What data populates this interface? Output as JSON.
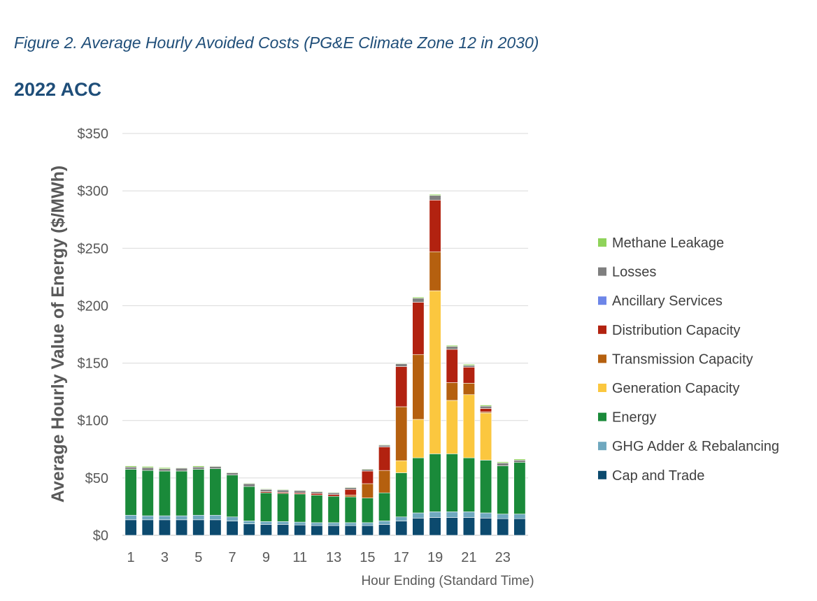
{
  "figure": {
    "caption": "Figure 2. Average Hourly Avoided Costs (PG&E Climate Zone 12 in 2030)",
    "subtitle": "2022 ACC"
  },
  "chart_data": {
    "type": "bar",
    "stacked": true,
    "title": "",
    "xlabel": "Hour Ending (Standard Time)",
    "ylabel": "Average Hourly Value of Energy ($/MWh)",
    "ylim": [
      0,
      350
    ],
    "yticks": [
      "$0",
      "$50",
      "$100",
      "$150",
      "$200",
      "$250",
      "$300",
      "$350"
    ],
    "grid": true,
    "legend_position": "right",
    "categories": [
      "1",
      "2",
      "3",
      "4",
      "5",
      "6",
      "7",
      "8",
      "9",
      "10",
      "11",
      "12",
      "13",
      "14",
      "15",
      "16",
      "17",
      "18",
      "19",
      "20",
      "21",
      "22",
      "23",
      "24"
    ],
    "xtick_labels": [
      "1",
      "",
      "3",
      "",
      "5",
      "",
      "7",
      "",
      "9",
      "",
      "11",
      "",
      "13",
      "",
      "15",
      "",
      "17",
      "",
      "19",
      "",
      "21",
      "",
      "23",
      ""
    ],
    "series": [
      {
        "name": "Cap and Trade",
        "color": "#0c4a6e",
        "values": [
          13.5,
          13.5,
          13.5,
          13.5,
          13.5,
          13.5,
          12.5,
          10,
          9.5,
          9.5,
          9,
          8.5,
          8.5,
          8.5,
          8.5,
          9.5,
          12.5,
          15,
          15.5,
          15.5,
          15.5,
          15,
          14.5,
          14.5
        ]
      },
      {
        "name": "GHG Adder & Rebalancing",
        "color": "#6fa8bf",
        "values": [
          4,
          3.5,
          3.5,
          3.5,
          4,
          4,
          3.5,
          2.5,
          2.5,
          2.5,
          2.5,
          2.5,
          2.5,
          2.5,
          2.5,
          3,
          3.5,
          4.5,
          5,
          5,
          5,
          4.5,
          4,
          4
        ]
      },
      {
        "name": "Energy",
        "color": "#1a8a3a",
        "values": [
          40,
          39.5,
          39,
          39,
          40,
          40.5,
          36.5,
          30,
          25,
          24.5,
          24.5,
          24,
          23,
          22.5,
          21.5,
          24.5,
          38.5,
          48,
          50.5,
          50.5,
          47,
          46,
          42,
          45
        ]
      },
      {
        "name": "Generation Capacity",
        "color": "#fbc73f",
        "values": [
          0,
          0,
          0,
          0,
          0,
          0,
          0,
          0,
          0,
          0,
          0,
          0,
          0,
          0,
          0,
          0,
          10.5,
          33.5,
          142,
          46.5,
          55,
          41,
          0,
          0
        ]
      },
      {
        "name": "Transmission Capacity",
        "color": "#b5600f",
        "values": [
          0,
          0,
          0,
          0,
          0,
          0,
          0,
          0,
          0,
          0,
          0,
          0,
          0,
          1.5,
          12.5,
          19.5,
          47,
          56.5,
          34,
          15.5,
          10,
          1,
          0,
          0
        ]
      },
      {
        "name": "Distribution Capacity",
        "color": "#b22210",
        "values": [
          0,
          0,
          0,
          0,
          0,
          0,
          0,
          0,
          1,
          1,
          1,
          1.5,
          1.5,
          5,
          11,
          20.5,
          35,
          45.5,
          45,
          29,
          14,
          3,
          0,
          0
        ]
      },
      {
        "name": "Ancillary Services",
        "color": "#6d86e8",
        "values": [
          0,
          0,
          0,
          0,
          0,
          0,
          0,
          0,
          0,
          0,
          0,
          0,
          0,
          0,
          0,
          0,
          0,
          0,
          0,
          0,
          0,
          0,
          0,
          0
        ]
      },
      {
        "name": "Losses",
        "color": "#7f7f7f",
        "values": [
          2,
          2.5,
          2,
          2.5,
          2,
          2,
          2,
          2.5,
          2,
          2,
          2,
          1.5,
          1.5,
          1.5,
          1.5,
          1.5,
          2.5,
          3.5,
          4,
          2.5,
          1.5,
          2,
          2.5,
          2
        ]
      },
      {
        "name": "Methane Leakage",
        "color": "#8fd35a",
        "values": [
          1,
          1,
          1,
          0.5,
          1,
          0.5,
          0.5,
          0.5,
          0.5,
          0.5,
          0.5,
          0.5,
          0.5,
          0.5,
          0.5,
          0.5,
          0.5,
          1,
          1,
          1,
          1,
          1,
          1,
          1
        ]
      }
    ]
  }
}
